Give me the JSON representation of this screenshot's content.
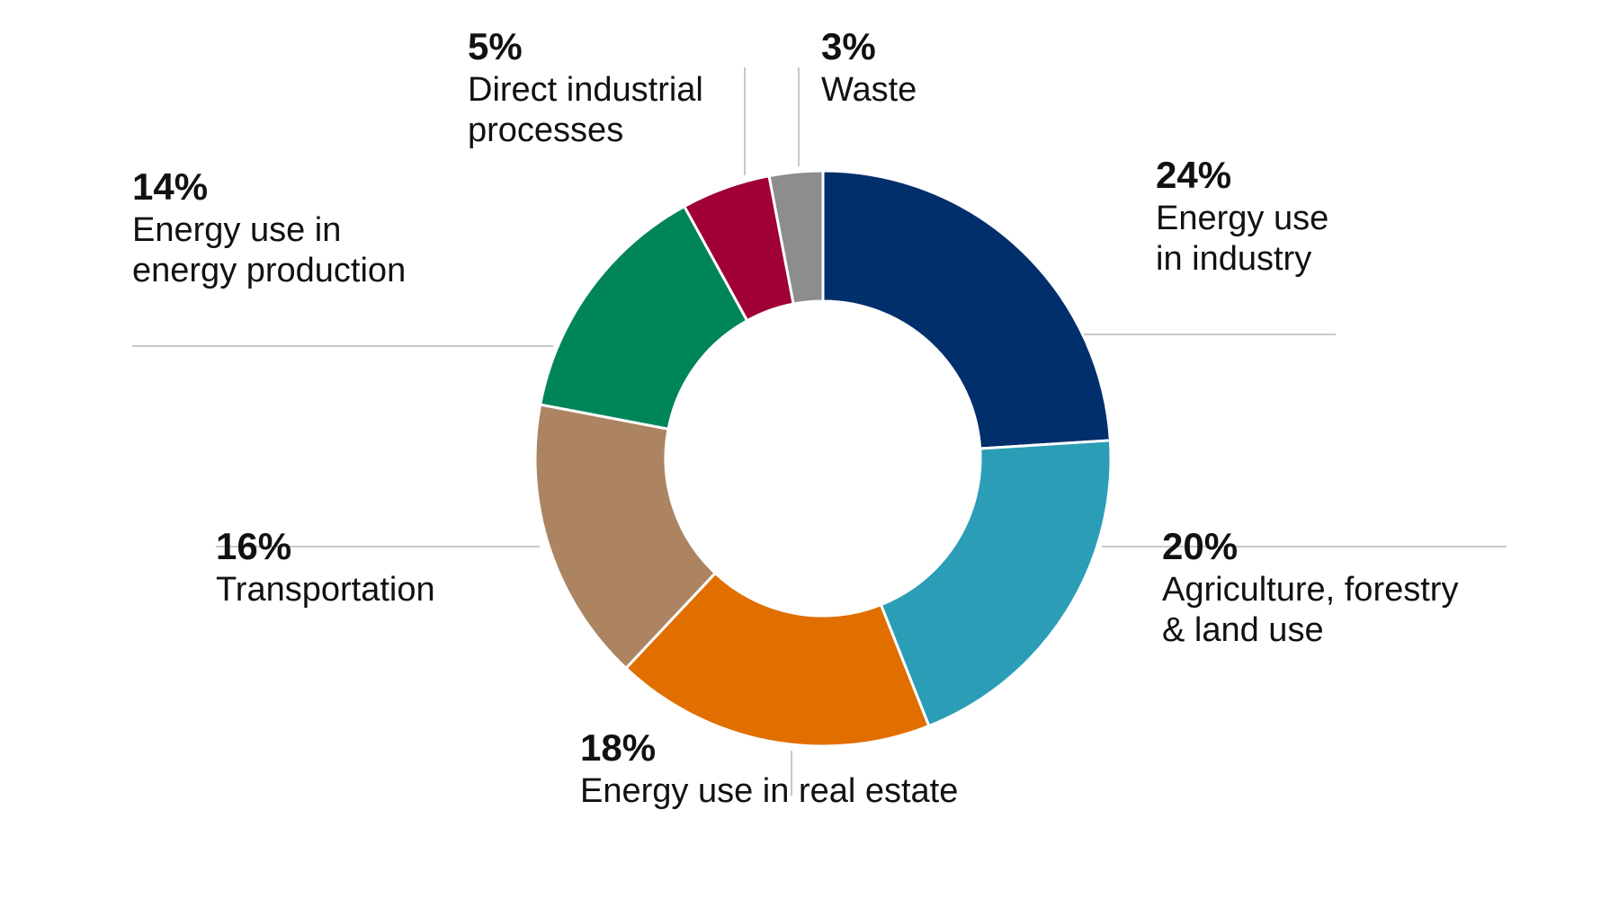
{
  "chart_data": {
    "type": "pie",
    "variant": "donut",
    "title": "",
    "slices": [
      {
        "label": "Energy use in industry",
        "value": 24,
        "value_label": "24%",
        "color": "#002f6c",
        "label_lines": [
          "Energy use",
          "in industry"
        ]
      },
      {
        "label": "Agriculture, forestry & land use",
        "value": 20,
        "value_label": "20%",
        "color": "#2b9db7",
        "label_lines": [
          "Agriculture, forestry",
          "& land use"
        ]
      },
      {
        "label": "Energy use in real estate",
        "value": 18,
        "value_label": "18%",
        "color": "#e06f00",
        "label_lines": [
          "Energy use in real estate"
        ]
      },
      {
        "label": "Transportation",
        "value": 16,
        "value_label": "16%",
        "color": "#ad8462",
        "label_lines": [
          "Transportation"
        ]
      },
      {
        "label": "Energy use in energy production",
        "value": 14,
        "value_label": "14%",
        "color": "#00845a",
        "label_lines": [
          "Energy use in",
          "energy production"
        ]
      },
      {
        "label": "Direct industrial processes",
        "value": 5,
        "value_label": "5%",
        "color": "#a00036",
        "label_lines": [
          "Direct industrial",
          "processes"
        ]
      },
      {
        "label": "Waste",
        "value": 3,
        "value_label": "3%",
        "color": "#8b8d8f",
        "label_lines": [
          "Waste"
        ]
      }
    ],
    "legend": "none"
  }
}
